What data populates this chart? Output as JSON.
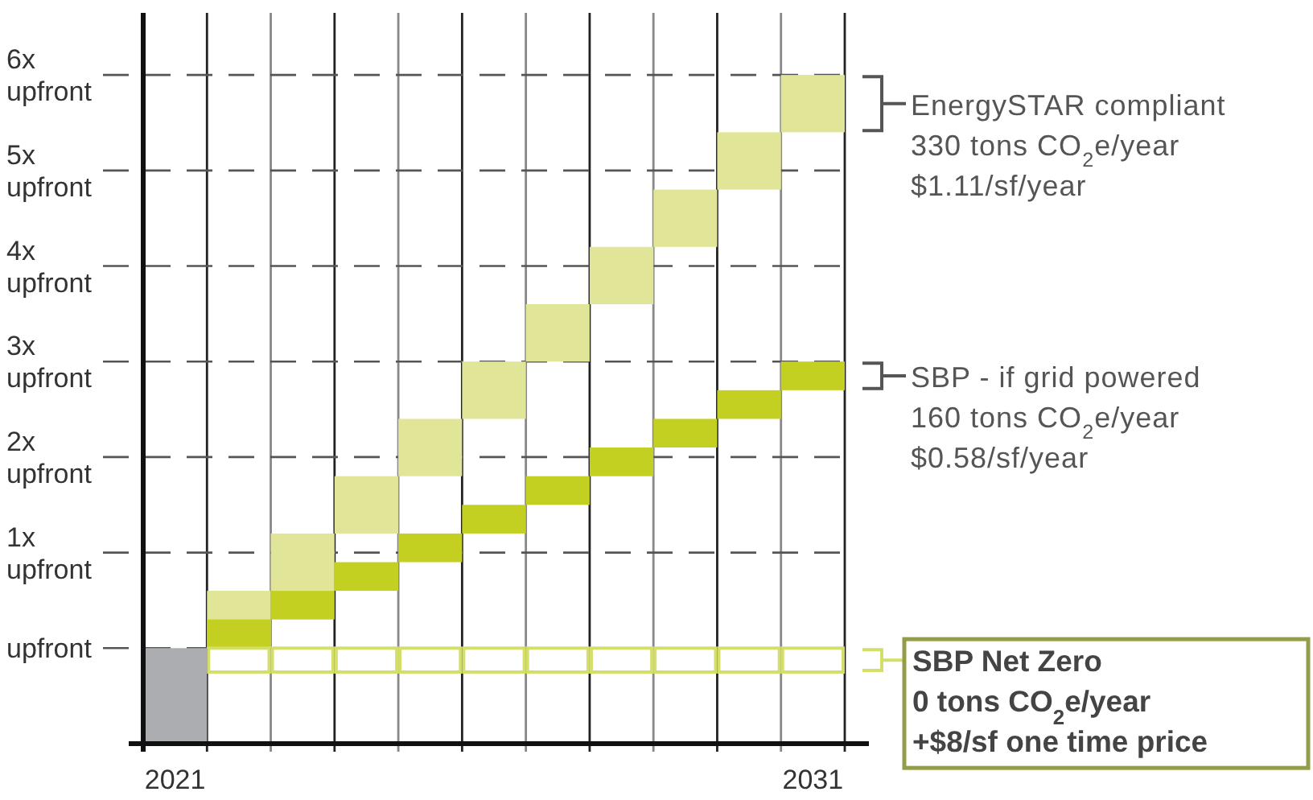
{
  "chart_data": {
    "type": "bar",
    "categories": [
      "2021",
      null,
      null,
      null,
      null,
      null,
      null,
      null,
      null,
      null,
      "2031"
    ],
    "ylim": [
      -1,
      6.65
    ],
    "yticks": [
      {
        "value": 0,
        "label": "upfront"
      },
      {
        "value": 1,
        "label": "1x upfront"
      },
      {
        "value": 2,
        "label": "2x upfront"
      },
      {
        "value": 3,
        "label": "3x upfront"
      },
      {
        "value": 4,
        "label": "4x upfront"
      },
      {
        "value": 5,
        "label": "5x upfront"
      },
      {
        "value": 6,
        "label": "6x upfront"
      }
    ],
    "grid": true,
    "series": [
      {
        "color": "#acadb1",
        "base": [
          -1,
          null,
          null,
          null,
          null,
          null,
          null,
          null,
          null,
          null,
          null
        ],
        "values": [
          1,
          null,
          null,
          null,
          null,
          null,
          null,
          null,
          null,
          null,
          null
        ]
      },
      {
        "name": "EnergySTAR compliant",
        "color": "#e0e597",
        "base": [
          null,
          0,
          0.6,
          1.2,
          1.8,
          2.4,
          3,
          3.6,
          4.2,
          4.8,
          5.4
        ],
        "values": [
          null,
          0.6,
          0.6,
          0.6,
          0.6,
          0.6,
          0.6,
          0.6,
          0.6,
          0.6,
          0.6
        ]
      },
      {
        "name": "SBP - if grid powered",
        "color": "#c3d022",
        "base": [
          null,
          0,
          0.3,
          0.6,
          0.9,
          1.2,
          1.5,
          1.8,
          2.1,
          2.4,
          2.7
        ],
        "values": [
          null,
          0.3,
          0.3,
          0.3,
          0.3,
          0.3,
          0.3,
          0.3,
          0.3,
          0.3,
          0.3
        ]
      },
      {
        "name": "SBP Net Zero",
        "color": "#d4df6a",
        "base": [
          null,
          -0.25,
          -0.25,
          -0.25,
          -0.25,
          -0.25,
          -0.25,
          -0.25,
          -0.25,
          -0.25,
          -0.25
        ],
        "values": [
          null,
          0.25,
          0.25,
          0.25,
          0.25,
          0.25,
          0.25,
          0.25,
          0.25,
          0.25,
          0.25
        ]
      }
    ],
    "annotations": [
      "330 tons CO$_{2}$e/year",
      "$1.11/sf/year",
      "160 tons CO$_{2}$e/year",
      "$0.58/sf/year",
      "0 tons CO$_{2}$e/year",
      "+$8/sf one time price"
    ]
  }
}
